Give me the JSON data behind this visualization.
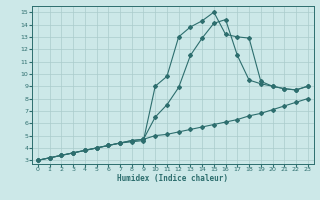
{
  "xlabel": "Humidex (Indice chaleur)",
  "bg_color": "#cce8e8",
  "grid_color": "#aacccc",
  "line_color": "#2d6e6e",
  "xlim": [
    -0.5,
    23.5
  ],
  "ylim": [
    2.7,
    15.5
  ],
  "xticks": [
    0,
    1,
    2,
    3,
    4,
    5,
    6,
    7,
    8,
    9,
    10,
    11,
    12,
    13,
    14,
    15,
    16,
    17,
    18,
    19,
    20,
    21,
    22,
    23
  ],
  "yticks": [
    3,
    4,
    5,
    6,
    7,
    8,
    9,
    10,
    11,
    12,
    13,
    14,
    15
  ],
  "line1_x": [
    0,
    1,
    2,
    3,
    4,
    5,
    6,
    7,
    8,
    9,
    10,
    11,
    12,
    13,
    14,
    15,
    16,
    17,
    18,
    19,
    20,
    21,
    22,
    23
  ],
  "line1_y": [
    3.0,
    3.2,
    3.4,
    3.6,
    3.8,
    4.0,
    4.2,
    4.4,
    4.6,
    4.7,
    5.0,
    5.1,
    5.3,
    5.5,
    5.7,
    5.9,
    6.1,
    6.3,
    6.6,
    6.8,
    7.1,
    7.4,
    7.7,
    8.0
  ],
  "line2_x": [
    0,
    1,
    2,
    3,
    4,
    5,
    6,
    7,
    8,
    9,
    10,
    11,
    12,
    13,
    14,
    15,
    16,
    17,
    18,
    19,
    20,
    21,
    22,
    23
  ],
  "line2_y": [
    3.0,
    3.2,
    3.4,
    3.6,
    3.8,
    4.0,
    4.2,
    4.4,
    4.6,
    4.7,
    6.5,
    7.5,
    8.9,
    11.5,
    12.9,
    14.1,
    14.4,
    11.5,
    9.5,
    9.2,
    9.0,
    8.8,
    8.7,
    9.0
  ],
  "line3_x": [
    0,
    1,
    2,
    3,
    4,
    5,
    6,
    7,
    8,
    9,
    10,
    11,
    12,
    13,
    14,
    15,
    16,
    17,
    18,
    19,
    20,
    21,
    22,
    23
  ],
  "line3_y": [
    3.0,
    3.2,
    3.4,
    3.6,
    3.8,
    4.0,
    4.2,
    4.4,
    4.5,
    4.6,
    9.0,
    9.8,
    13.0,
    13.8,
    14.3,
    15.0,
    13.2,
    13.0,
    12.9,
    9.4,
    9.0,
    8.8,
    8.7,
    9.0
  ]
}
